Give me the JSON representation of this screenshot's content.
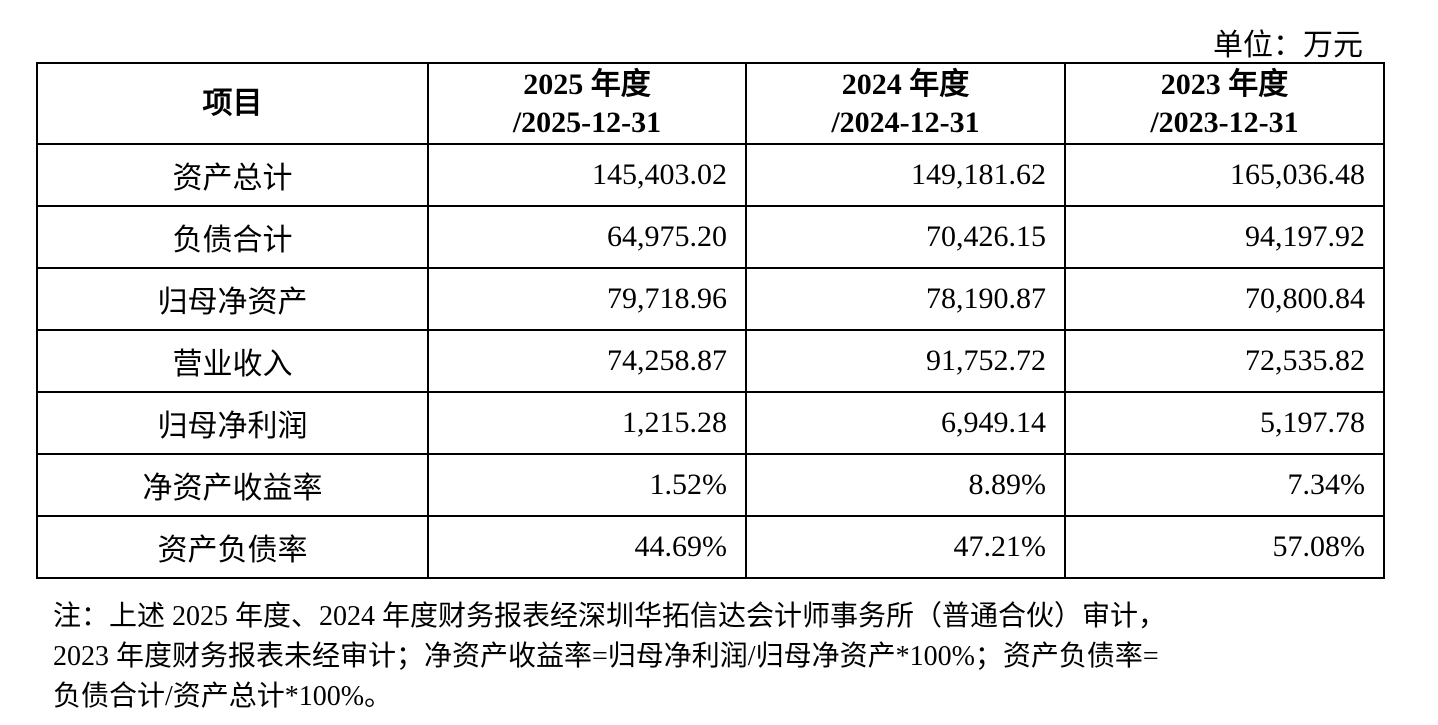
{
  "unit": "单位：万元",
  "header": [
    "项目",
    [
      "2025 年度",
      "/2025-12-31"
    ],
    [
      "2024 年度",
      "/2024-12-31"
    ],
    [
      "2023 年度",
      "/2023-12-31"
    ]
  ],
  "rows": [
    [
      "资产总计",
      "145,403.02",
      "149,181.62",
      "165,036.48"
    ],
    [
      "负债合计",
      "64,975.20",
      "70,426.15",
      "94,197.92"
    ],
    [
      "归母净资产",
      "79,718.96",
      "78,190.87",
      "70,800.84"
    ],
    [
      "营业收入",
      "74,258.87",
      "91,752.72",
      "72,535.82"
    ],
    [
      "归母净利润",
      "1,215.28",
      "6,949.14",
      "5,197.78"
    ],
    [
      "净资产收益率",
      "1.52%",
      "8.89%",
      "7.34%"
    ],
    [
      "资产负债率",
      "44.69%",
      "47.21%",
      "57.08%"
    ]
  ],
  "note": [
    "注：上述 2025 年度、2024 年度财务报表经深圳华拓信达会计师事务所（普通合伙）审计，",
    "2023 年度财务报表未经审计；净资产收益率=归母净利润/归母净资产*100%；资产负债率=",
    "负债合计/资产总计*100%。"
  ]
}
